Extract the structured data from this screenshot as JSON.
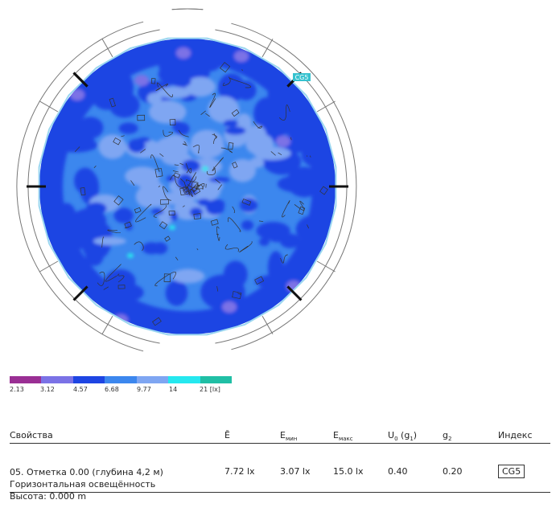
{
  "plan": {
    "calc_tag": "CG5",
    "colors": {
      "wall": "#777777",
      "outline": "#9ad6f0",
      "mullion": "#111111",
      "tag_bg": "#36c2cf",
      "contour": "#333333"
    }
  },
  "legend": {
    "colors": [
      "#9a2f94",
      "#7b72e6",
      "#1e45e3",
      "#3c87ee",
      "#7fa6f2",
      "#25e8ef",
      "#20bfa5"
    ],
    "labels": [
      "2.13",
      "3.12",
      "4.57",
      "6.68",
      "9.77",
      "14",
      "21 [lx]"
    ]
  },
  "table": {
    "headers": {
      "props": "Свойства",
      "avg": "Ē",
      "min": "E",
      "min_sub": "мин",
      "max": "E",
      "max_sub": "макс",
      "u0": "U",
      "u0_sub": "0",
      "u0_paren": "(g",
      "u0_paren_sub": "1",
      "u0_close": ")",
      "g2": "g",
      "g2_sub": "2",
      "index": "Индекс"
    },
    "row": {
      "line1": "05. Отметка 0.00 (глубина 4,2 м)",
      "line2": "Горизонтальная освещённость",
      "line3": "Высота: 0.000 m",
      "avg": "7.72 lx",
      "min": "3.07 lx",
      "max": "15.0 lx",
      "u0": "0.40",
      "g2": "0.20",
      "index": "CG5"
    }
  }
}
